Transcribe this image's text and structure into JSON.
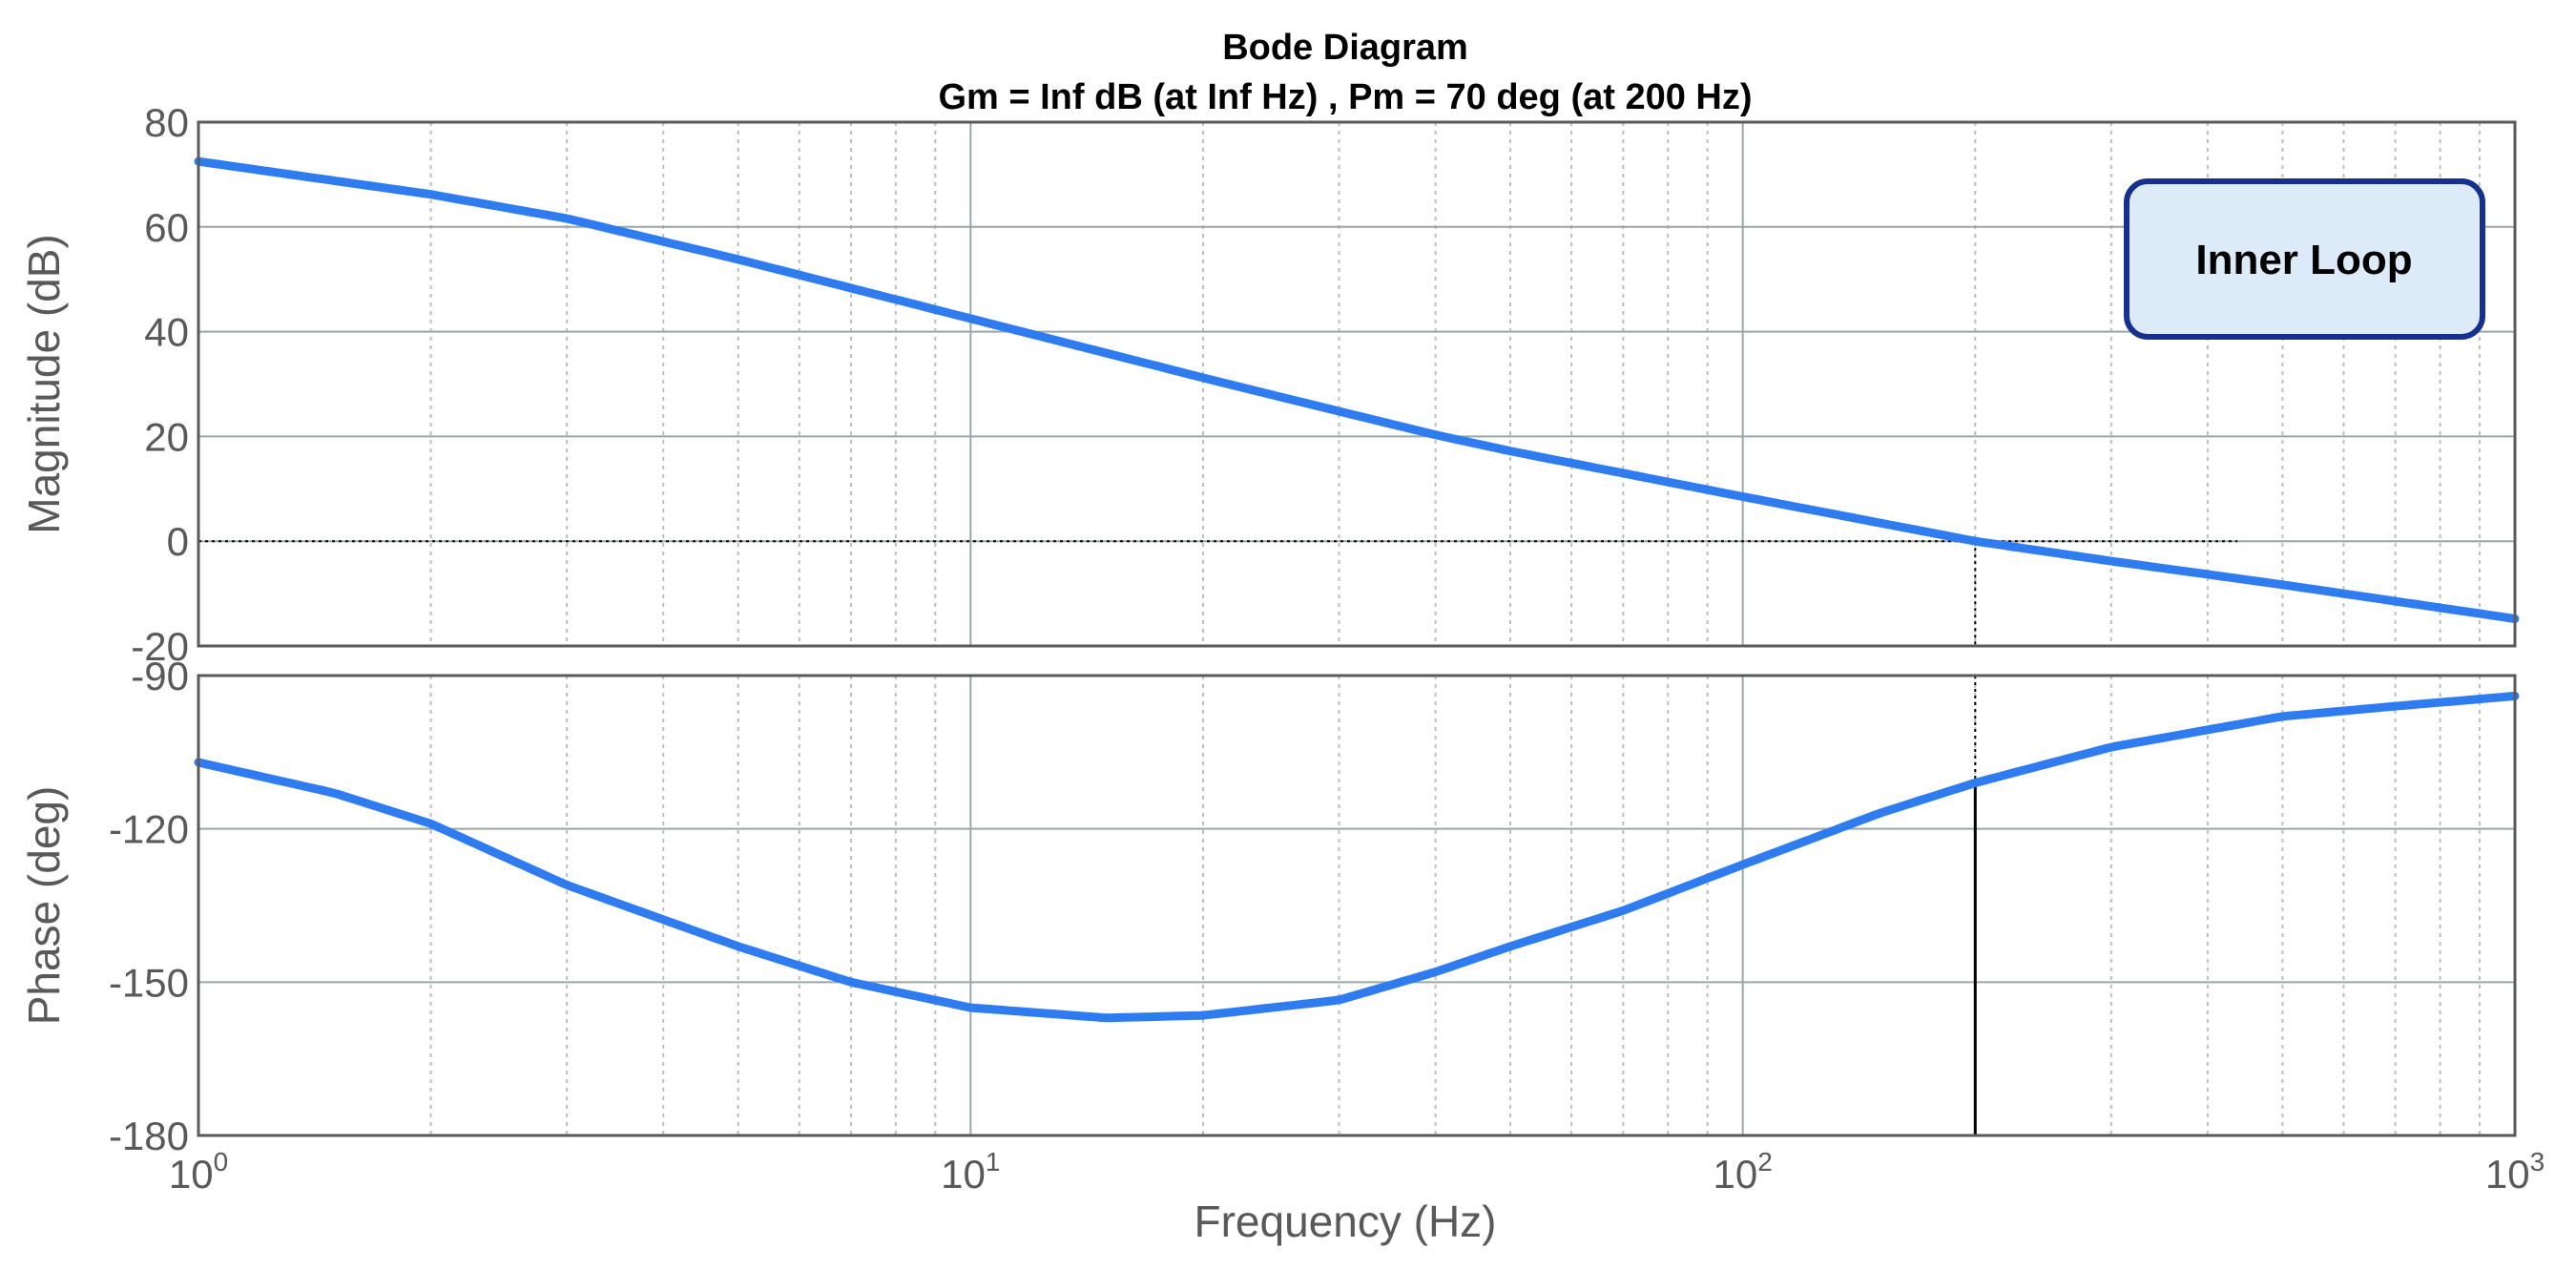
{
  "chart_data": {
    "type": "line",
    "title": "Bode Diagram",
    "subtitle": "Gm = Inf dB (at Inf Hz) ,  Pm = 70 deg (at 200 Hz)",
    "xlabel": "Frequency  (Hz)",
    "xscale": "log",
    "xlim": [
      1,
      1000
    ],
    "x_ticks": [
      {
        "base": "10",
        "exp": "0",
        "value": 1
      },
      {
        "base": "10",
        "exp": "1",
        "value": 10
      },
      {
        "base": "10",
        "exp": "2",
        "value": 100
      },
      {
        "base": "10",
        "exp": "3",
        "value": 1000
      }
    ],
    "crossover_hz": 200,
    "legend_text": "Inner Loop",
    "legend_placement": "top-right",
    "series_color": "#2f7cf0",
    "grid": true,
    "magnitude": {
      "ylabel": "Magnitude (dB)",
      "ylim": [
        -20,
        80
      ],
      "yticks": [
        "80",
        "60",
        "40",
        "20",
        "0",
        "-20"
      ],
      "ytick_values": [
        80,
        60,
        40,
        20,
        0,
        -20
      ],
      "x": [
        1,
        2,
        3,
        5,
        10,
        20,
        30,
        40,
        50,
        100,
        200,
        300,
        500,
        1000
      ],
      "values": [
        72.5,
        66.2,
        61.6,
        53.8,
        42.5,
        31.2,
        24.8,
        20.3,
        17.2,
        8.5,
        0,
        -3.8,
        -8.3,
        -14.8
      ]
    },
    "phase": {
      "ylabel": "Phase (deg)",
      "ylim": [
        -180,
        -90
      ],
      "yticks": [
        "-90",
        "-120",
        "-150",
        "-180"
      ],
      "ytick_values": [
        -90,
        -120,
        -150,
        -180
      ],
      "x": [
        1,
        1.5,
        2,
        3,
        5,
        7,
        10,
        15,
        20,
        30,
        40,
        50,
        70,
        100,
        150,
        200,
        300,
        500,
        700,
        1000
      ],
      "values": [
        -107,
        -113,
        -119,
        -131,
        -143,
        -150,
        -155,
        -157,
        -156.5,
        -153.5,
        -148,
        -143,
        -136,
        -127,
        -117,
        -111,
        -104,
        -98,
        -96,
        -94
      ]
    }
  }
}
